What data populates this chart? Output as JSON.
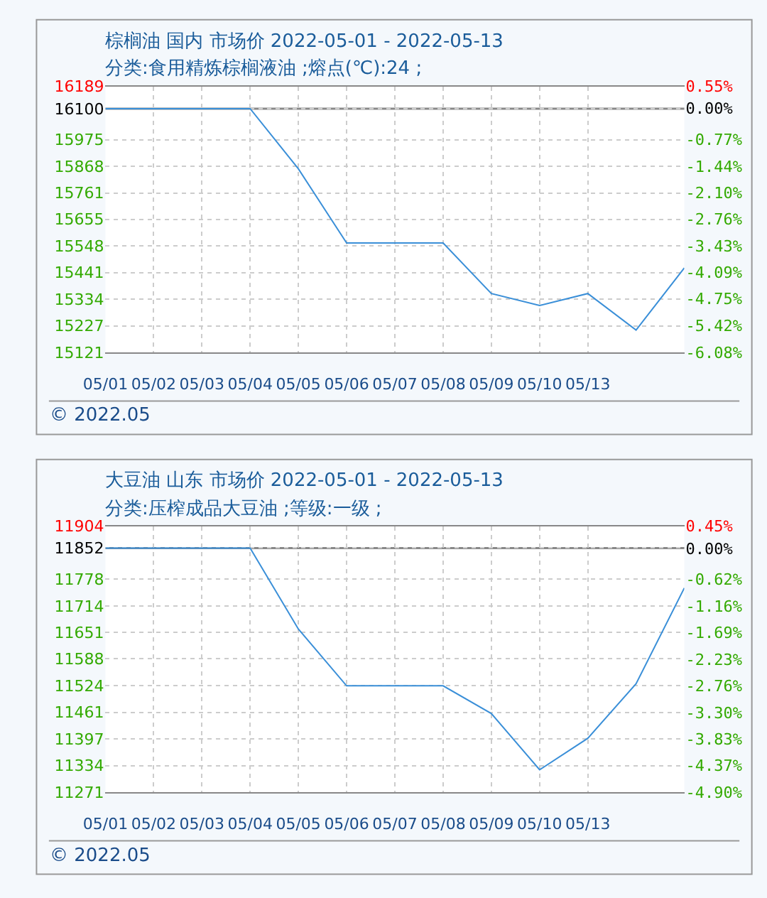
{
  "chart_data": [
    {
      "type": "line",
      "title": "棕榈油 国内 市场价 2022-05-01 - 2022-05-13",
      "subtitle": "分类:食用精炼棕榈液油 ;熔点(℃):24 ;",
      "categories": [
        "05/01",
        "05/02",
        "05/03",
        "05/04",
        "05/05",
        "05/06",
        "05/07",
        "05/08",
        "05/09",
        "05/10",
        "05/13",
        null,
        null
      ],
      "series": [
        {
          "color": "#3a8fd8",
          "values": [
            16100,
            16100,
            16100,
            16100,
            15858,
            15560,
            15560,
            15560,
            15357,
            15309,
            15357,
            15210,
            15460
          ]
        }
      ],
      "ylim": [
        15121,
        16189
      ],
      "yticks": [
        15121,
        15227,
        15334,
        15441,
        15548,
        15655,
        15761,
        15868,
        15975,
        16100,
        16189
      ],
      "y2lim": [
        -6.08,
        0.55
      ],
      "y2ticks": [
        {
          "value": -6.08,
          "label": "-6.08%"
        },
        {
          "value": -5.42,
          "label": "-5.42%"
        },
        {
          "value": -4.75,
          "label": "-4.75%"
        },
        {
          "value": -4.09,
          "label": "-4.09%"
        },
        {
          "value": -3.43,
          "label": "-3.43%"
        },
        {
          "value": -2.76,
          "label": "-2.76%"
        },
        {
          "value": -2.1,
          "label": "-2.10%"
        },
        {
          "value": -1.44,
          "label": "-1.44%"
        },
        {
          "value": -0.77,
          "label": "-0.77%"
        },
        {
          "value": 0,
          "label": "0.00%"
        },
        {
          "value": 0.55,
          "label": "0.55%"
        }
      ],
      "ref_lines": [
        {
          "axis": "y",
          "value": 16100,
          "color": "#888888"
        }
      ],
      "grid": true,
      "marker": "none",
      "line_style": "solid",
      "annotations": [
        "© 2022.05"
      ]
    },
    {
      "type": "line",
      "title": "大豆油 山东 市场价 2022-05-01 - 2022-05-13",
      "subtitle": "分类:压榨成品大豆油 ;等级:一级 ;",
      "categories": [
        "05/01",
        "05/02",
        "05/03",
        "05/04",
        "05/05",
        "05/06",
        "05/07",
        "05/08",
        "05/09",
        "05/10",
        "05/13",
        null,
        null
      ],
      "series": [
        {
          "color": "#3a8fd8",
          "values": [
            11852,
            11852,
            11852,
            11852,
            11659,
            11524,
            11524,
            11524,
            11458,
            11324,
            11399,
            11529,
            11757
          ]
        }
      ],
      "ylim": [
        11271,
        11904
      ],
      "yticks": [
        11271,
        11334,
        11397,
        11461,
        11524,
        11588,
        11651,
        11714,
        11778,
        11852,
        11904
      ],
      "y2lim": [
        -4.9,
        0.45
      ],
      "y2ticks": [
        {
          "value": -4.9,
          "label": "-4.90%"
        },
        {
          "value": -4.37,
          "label": "-4.37%"
        },
        {
          "value": -3.83,
          "label": "-3.83%"
        },
        {
          "value": -3.3,
          "label": "-3.30%"
        },
        {
          "value": -2.76,
          "label": "-2.76%"
        },
        {
          "value": -2.23,
          "label": "-2.23%"
        },
        {
          "value": -1.69,
          "label": "-1.69%"
        },
        {
          "value": -1.16,
          "label": "-1.16%"
        },
        {
          "value": -0.62,
          "label": "-0.62%"
        },
        {
          "value": 0,
          "label": "0.00%"
        },
        {
          "value": 0.45,
          "label": "0.45%"
        }
      ],
      "ref_lines": [
        {
          "axis": "y",
          "value": 11852,
          "color": "#888888"
        }
      ],
      "grid": true,
      "marker": "none",
      "line_style": "solid",
      "annotations": [
        "© 2022.05"
      ]
    }
  ]
}
